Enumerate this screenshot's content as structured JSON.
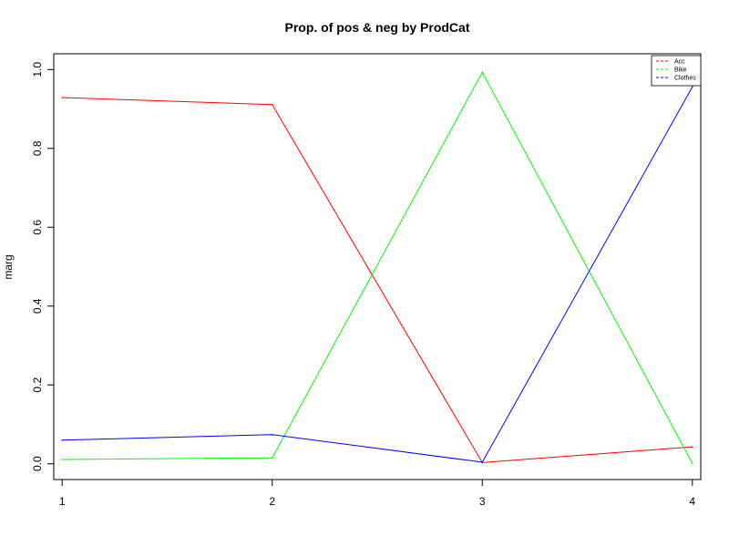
{
  "chart_data": {
    "type": "line",
    "title": "Prop. of pos & neg by ProdCat",
    "xlabel": "",
    "ylabel": "marg",
    "x": [
      1,
      2,
      3,
      4
    ],
    "x_ticks": [
      "1",
      "2",
      "3",
      "4"
    ],
    "y_ticks": [
      "0.0",
      "0.2",
      "0.4",
      "0.6",
      "0.8",
      "1.0"
    ],
    "xlim": [
      0.96,
      4.04
    ],
    "ylim": [
      -0.04,
      1.04
    ],
    "grid": false,
    "legend_position": "top-right",
    "series": [
      {
        "name": "Acc",
        "color": "#ff0000",
        "values": [
          0.929,
          0.911,
          0.003,
          0.043
        ]
      },
      {
        "name": "Bike",
        "color": "#00ff00",
        "values": [
          0.011,
          0.015,
          0.993,
          0.001
        ]
      },
      {
        "name": "Clothes",
        "color": "#0000ff",
        "values": [
          0.06,
          0.074,
          0.004,
          0.956
        ]
      }
    ]
  }
}
